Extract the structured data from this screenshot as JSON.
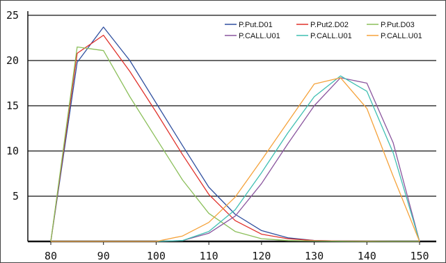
{
  "chart_data": {
    "type": "line",
    "title": "",
    "xlabel": "",
    "ylabel": "",
    "xlim": [
      80,
      150
    ],
    "ylim": [
      0,
      25
    ],
    "x_ticks": [
      80,
      90,
      100,
      110,
      120,
      130,
      140,
      150
    ],
    "y_ticks": [
      5,
      10,
      15,
      20,
      25
    ],
    "grid": "horizontal",
    "legend_position": "top-right",
    "x": [
      80,
      85,
      90,
      95,
      100,
      105,
      110,
      115,
      120,
      125,
      130,
      135,
      140,
      145,
      150
    ],
    "series": [
      {
        "name": "P.Put.D01",
        "color": "#2f4f9f",
        "values": [
          0,
          19.8,
          23.7,
          20.0,
          15.3,
          10.6,
          6.0,
          3.0,
          1.2,
          0.4,
          0.1,
          0.05,
          0.02,
          0,
          0
        ]
      },
      {
        "name": "P.Put2.D02",
        "color": "#e0302a",
        "values": [
          0,
          20.8,
          22.8,
          18.8,
          14.3,
          9.6,
          5.2,
          2.3,
          0.8,
          0.3,
          0.1,
          0.05,
          0.02,
          0,
          0
        ]
      },
      {
        "name": "P.Put.D03",
        "color": "#8bbf5a",
        "values": [
          0,
          21.5,
          21.1,
          16.0,
          11.4,
          6.8,
          3.1,
          1.1,
          0.3,
          0.1,
          0.05,
          0.02,
          0,
          0,
          0
        ]
      },
      {
        "name": "P.CALL.U01",
        "color": "#8a559e",
        "values": [
          0,
          0,
          0,
          0,
          0,
          0.1,
          0.9,
          2.8,
          6.4,
          10.8,
          15.0,
          18.1,
          17.5,
          10.9,
          0
        ]
      },
      {
        "name": "P.CALL.U01",
        "color": "#3fbfb2",
        "values": [
          0,
          0,
          0,
          0,
          0,
          0.1,
          1.1,
          3.5,
          7.6,
          12.0,
          16.0,
          18.3,
          16.6,
          9.8,
          0
        ]
      },
      {
        "name": "P.CALL.U01",
        "color": "#f5a23a",
        "values": [
          0,
          0,
          0,
          0,
          0,
          0.6,
          2.1,
          4.9,
          9.0,
          13.2,
          17.4,
          18.1,
          14.7,
          7.2,
          0
        ]
      }
    ]
  }
}
